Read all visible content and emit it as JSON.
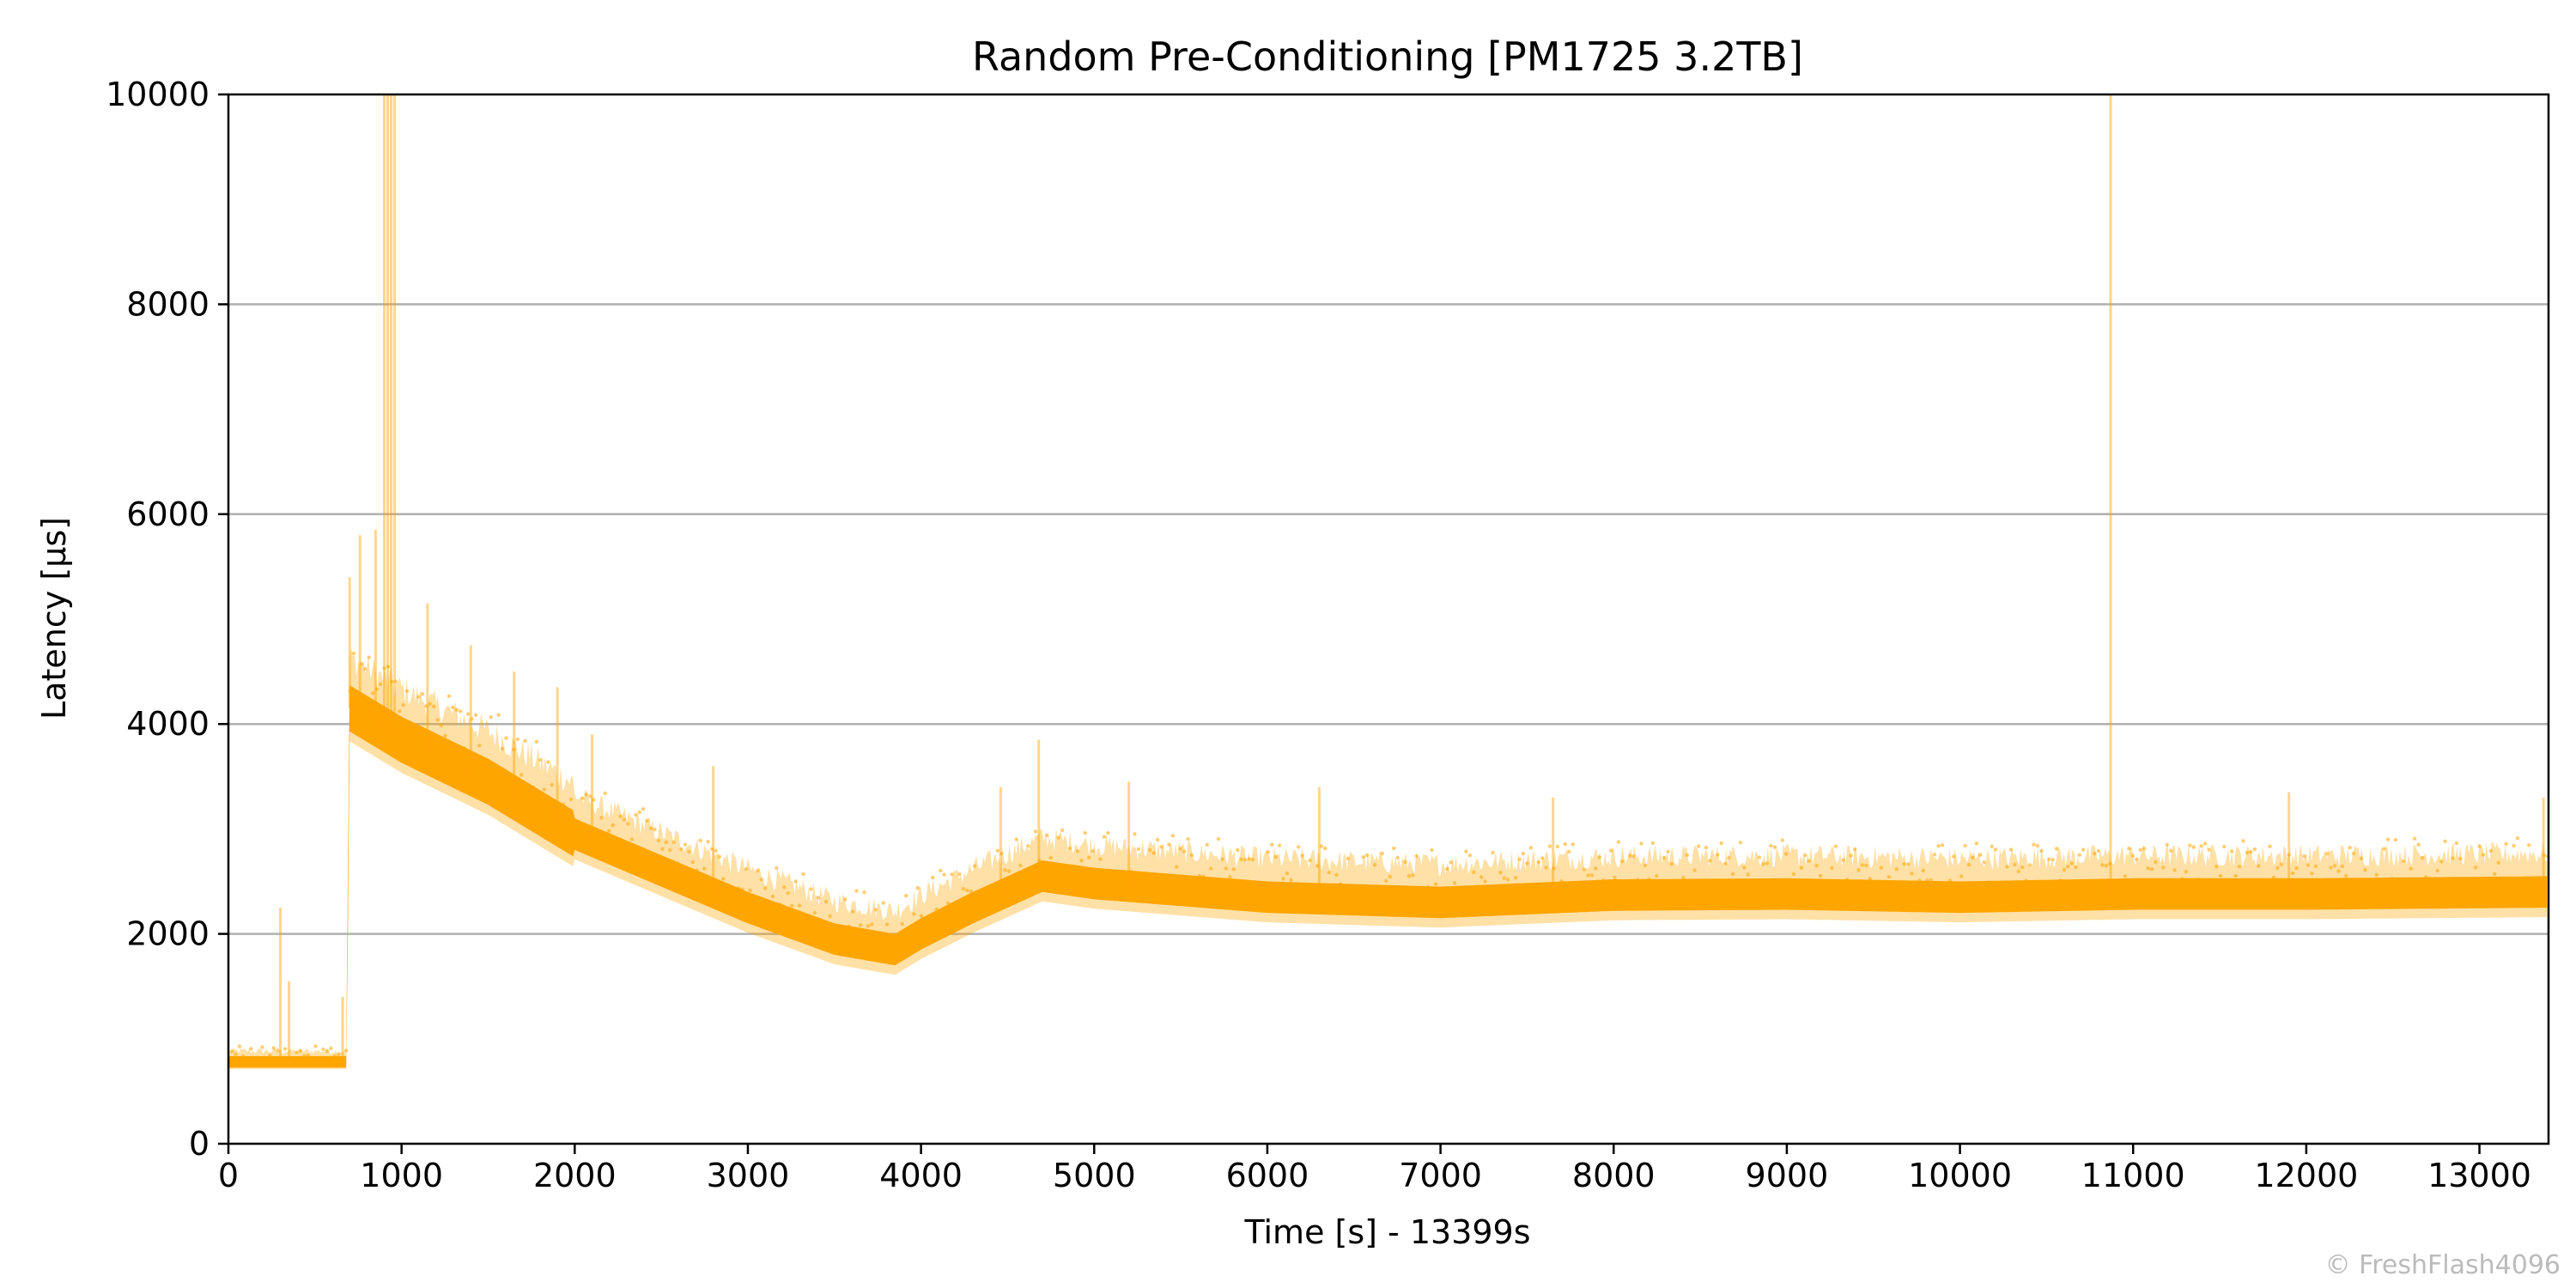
{
  "chart_data": {
    "type": "scatter",
    "title": "Random Pre-Conditioning [PM1725 3.2TB]",
    "xlabel": "Time [s] - 13399s",
    "ylabel": "Latency [µs]",
    "xlim": [
      0,
      13399
    ],
    "ylim": [
      0,
      10000
    ],
    "x_ticks": [
      0,
      1000,
      2000,
      3000,
      4000,
      5000,
      6000,
      7000,
      8000,
      9000,
      10000,
      11000,
      12000,
      13000
    ],
    "y_ticks": [
      0,
      2000,
      4000,
      6000,
      8000,
      10000
    ],
    "grid": "horizontal",
    "legend": "none",
    "series_color": "#FFA500",
    "credit": "© FreshFlash4096",
    "trend": {
      "x": [
        0,
        680,
        690,
        700,
        1000,
        1500,
        2000,
        2500,
        3000,
        3500,
        3850,
        4000,
        4300,
        4700,
        5000,
        6000,
        7000,
        8000,
        9000,
        10000,
        11000,
        12000,
        13399
      ],
      "y": [
        780,
        780,
        2200,
        4150,
        3850,
        3450,
        2950,
        2600,
        2250,
        1950,
        1850,
        2000,
        2250,
        2550,
        2480,
        2350,
        2300,
        2370,
        2380,
        2350,
        2380,
        2380,
        2400
      ]
    },
    "spikes": [
      {
        "x": 300,
        "y": 2250
      },
      {
        "x": 350,
        "y": 1550
      },
      {
        "x": 660,
        "y": 1400
      },
      {
        "x": 700,
        "y": 5400
      },
      {
        "x": 760,
        "y": 5800
      },
      {
        "x": 850,
        "y": 5850
      },
      {
        "x": 900,
        "y": 10000
      },
      {
        "x": 920,
        "y": 10000
      },
      {
        "x": 940,
        "y": 10000
      },
      {
        "x": 960,
        "y": 10000
      },
      {
        "x": 1150,
        "y": 5150
      },
      {
        "x": 1400,
        "y": 4750
      },
      {
        "x": 1650,
        "y": 4500
      },
      {
        "x": 1900,
        "y": 4350
      },
      {
        "x": 2100,
        "y": 3900
      },
      {
        "x": 2800,
        "y": 3600
      },
      {
        "x": 4460,
        "y": 3400
      },
      {
        "x": 4680,
        "y": 3850
      },
      {
        "x": 5200,
        "y": 3450
      },
      {
        "x": 6300,
        "y": 3400
      },
      {
        "x": 7650,
        "y": 3300
      },
      {
        "x": 10870,
        "y": 10000
      },
      {
        "x": 11900,
        "y": 3350
      },
      {
        "x": 13370,
        "y": 3300
      }
    ]
  }
}
